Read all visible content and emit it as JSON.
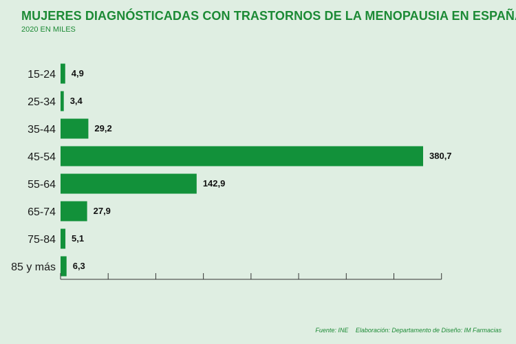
{
  "title": "MUJERES DIAGNÓSTICADAS CON TRASTORNOS DE LA MENOPAUSIA EN ESPAÑA",
  "subtitle": "2020 EN MILES",
  "footer": {
    "source": "Fuente: INE",
    "credit": "Elaboración: Departamento de Diseño: IM Farmacias"
  },
  "colors": {
    "bar": "#12913a",
    "accent": "#1c8a35",
    "background": "#dfeee2"
  },
  "chart_data": {
    "type": "bar",
    "orientation": "horizontal",
    "title": "MUJERES DIAGNÓSTICADAS CON TRASTORNOS DE LA MENOPAUSIA EN ESPAÑA",
    "subtitle": "2020 EN MILES",
    "categories": [
      "15-24",
      "25-34",
      "35-44",
      "45-54",
      "55-64",
      "65-74",
      "75-84",
      "85 y más"
    ],
    "values": [
      4.9,
      3.4,
      29.2,
      380.7,
      142.9,
      27.9,
      5.1,
      6.3
    ],
    "value_labels": [
      "4,9",
      "3,4",
      "29,2",
      "380,7",
      "142,9",
      "27,9",
      "5,1",
      "6,3"
    ],
    "xlim": [
      0,
      400
    ],
    "grid": false,
    "legend": "none"
  }
}
